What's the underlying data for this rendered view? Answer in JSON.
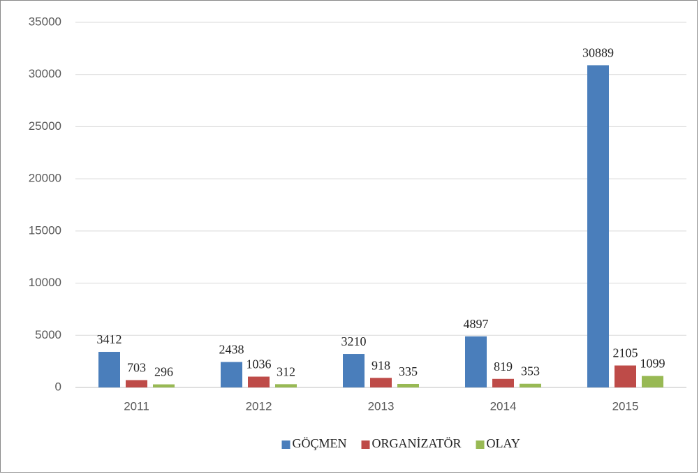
{
  "chart_data": {
    "type": "bar",
    "categories": [
      "2011",
      "2012",
      "2013",
      "2014",
      "2015"
    ],
    "series": [
      {
        "name": "GÖÇMEN",
        "color": "#4a7ebb",
        "values": [
          3412,
          2438,
          3210,
          4897,
          30889
        ]
      },
      {
        "name": "ORGANİZATÖR",
        "color": "#be4b48",
        "values": [
          703,
          1036,
          918,
          819,
          2105
        ]
      },
      {
        "name": "OLAY",
        "color": "#98b954",
        "values": [
          296,
          312,
          335,
          353,
          1099
        ]
      }
    ],
    "ylim": [
      0,
      35000
    ],
    "yticks": [
      0,
      5000,
      10000,
      15000,
      20000,
      25000,
      30000,
      35000
    ],
    "grid": true,
    "legend": "bottom"
  }
}
